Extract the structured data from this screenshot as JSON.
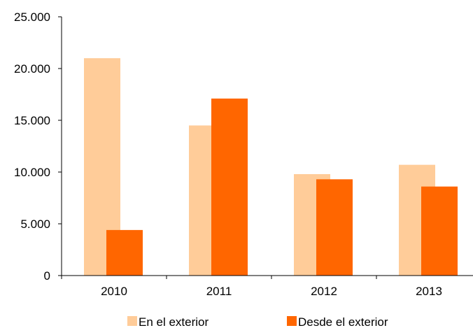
{
  "chart_data": {
    "type": "bar",
    "categories": [
      "2010",
      "2011",
      "2012",
      "2013"
    ],
    "series": [
      {
        "name": "En el exterior",
        "values": [
          21000,
          14500,
          9800,
          10700
        ],
        "color": "#FFCC99"
      },
      {
        "name": "Desde el exterior",
        "values": [
          4400,
          17100,
          9300,
          8600
        ],
        "color": "#FF6600"
      }
    ],
    "y_ticks": [
      "0",
      "5.000",
      "10.000",
      "15.000",
      "20.000",
      "25.000"
    ],
    "ylim": [
      0,
      25000
    ],
    "grid": false,
    "legend_position": "bottom",
    "title": "",
    "xlabel": "",
    "ylabel": ""
  }
}
